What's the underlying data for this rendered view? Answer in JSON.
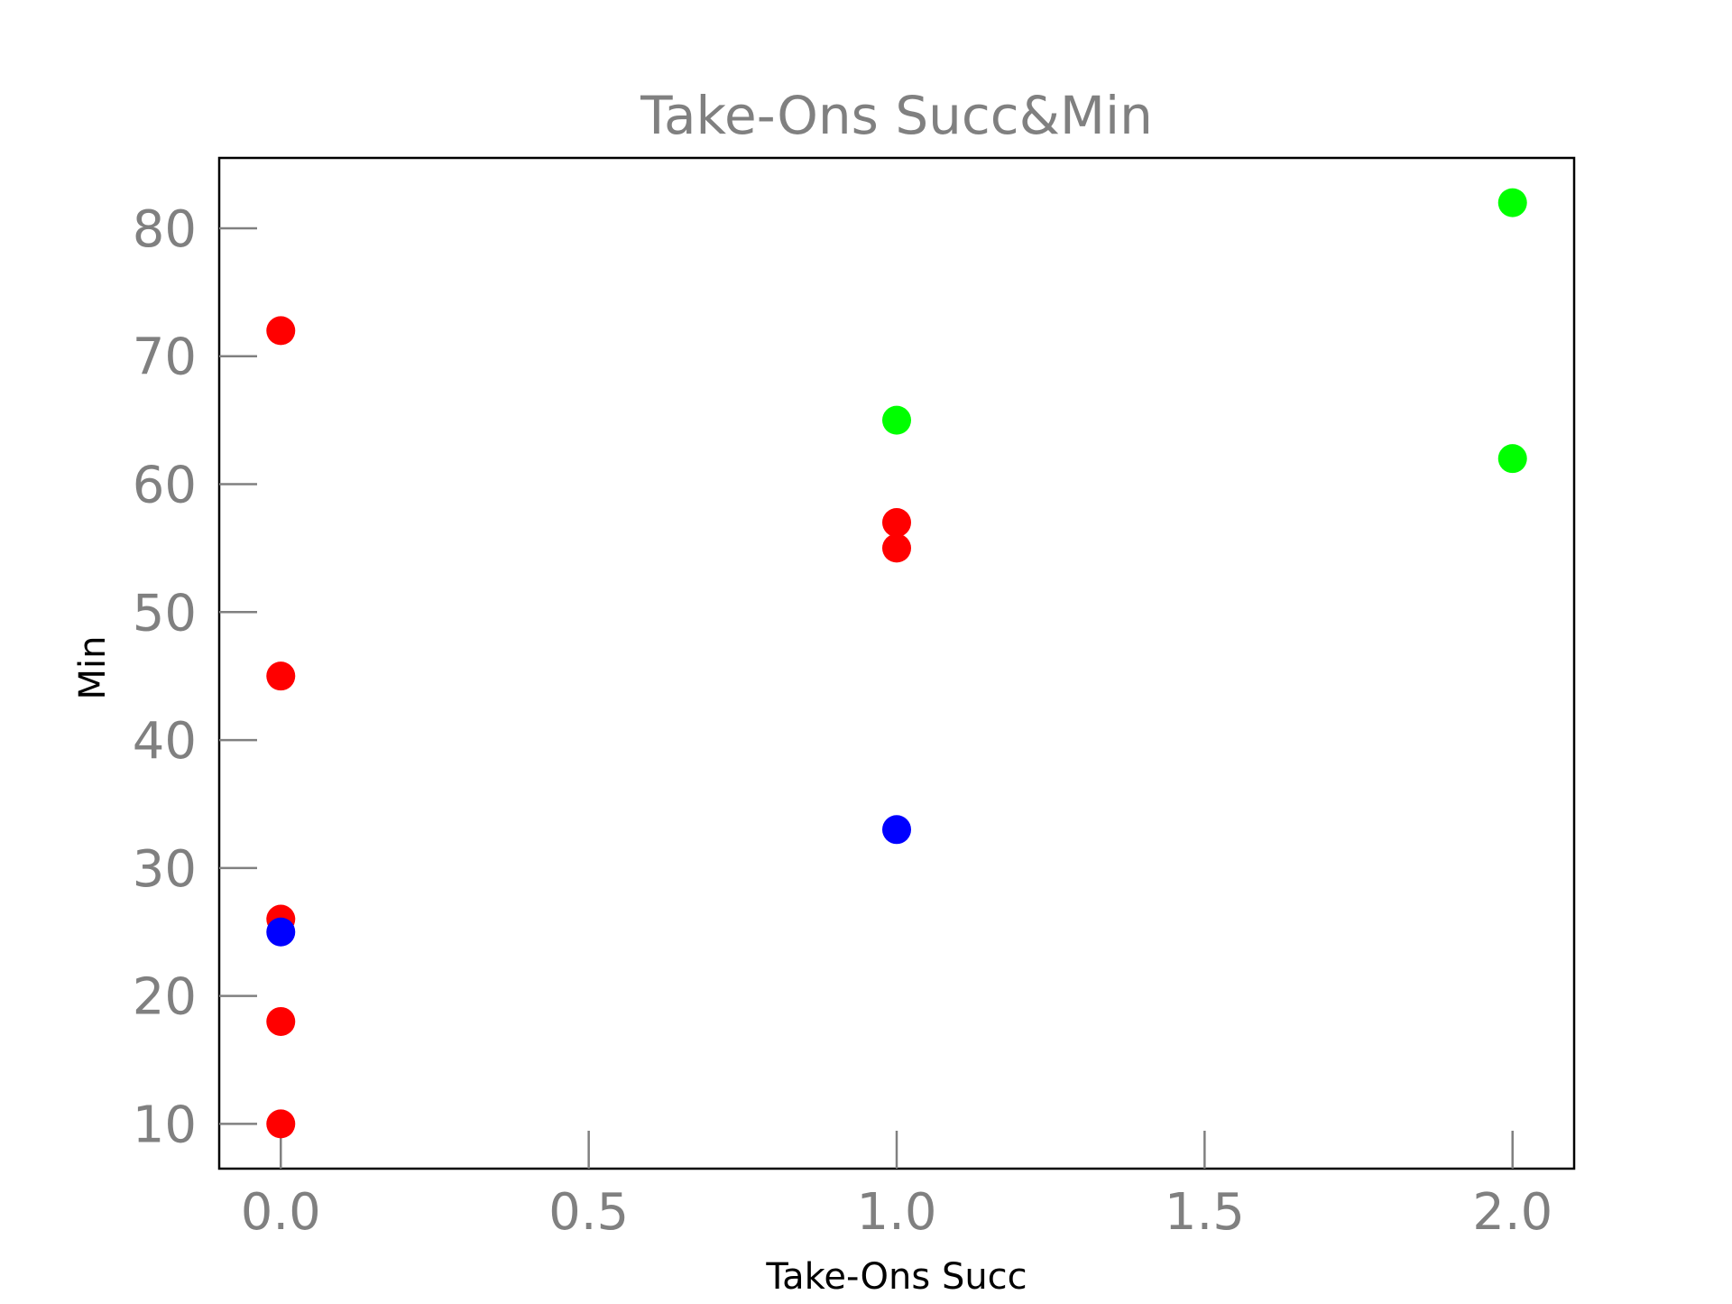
{
  "chart_data": {
    "type": "scatter",
    "title": "Take-Ons Succ&Min",
    "xlabel": "Take-Ons Succ",
    "ylabel": "Min",
    "xlim": [
      -0.1,
      2.1
    ],
    "ylim": [
      6.5,
      85.5
    ],
    "xticks": [
      0.0,
      0.5,
      1.0,
      1.5,
      2.0
    ],
    "xtick_labels": [
      "0.0",
      "0.5",
      "1.0",
      "1.5",
      "2.0"
    ],
    "yticks": [
      10,
      20,
      30,
      40,
      50,
      60,
      70,
      80
    ],
    "ytick_labels": [
      "10",
      "20",
      "30",
      "40",
      "50",
      "60",
      "70",
      "80"
    ],
    "grid": false,
    "points": [
      {
        "x": 0,
        "y": 72,
        "color": "#ff0000"
      },
      {
        "x": 0,
        "y": 45,
        "color": "#ff0000"
      },
      {
        "x": 0,
        "y": 26,
        "color": "#ff0000"
      },
      {
        "x": 0,
        "y": 18,
        "color": "#ff0000"
      },
      {
        "x": 0,
        "y": 10,
        "color": "#ff0000"
      },
      {
        "x": 1,
        "y": 57,
        "color": "#ff0000"
      },
      {
        "x": 1,
        "y": 55,
        "color": "#ff0000"
      },
      {
        "x": 1,
        "y": 65,
        "color": "#00ff00"
      },
      {
        "x": 2,
        "y": 82,
        "color": "#00ff00"
      },
      {
        "x": 2,
        "y": 62,
        "color": "#00ff00"
      },
      {
        "x": 0,
        "y": 25,
        "color": "#0000ff"
      },
      {
        "x": 1,
        "y": 33,
        "color": "#0000ff"
      }
    ]
  }
}
